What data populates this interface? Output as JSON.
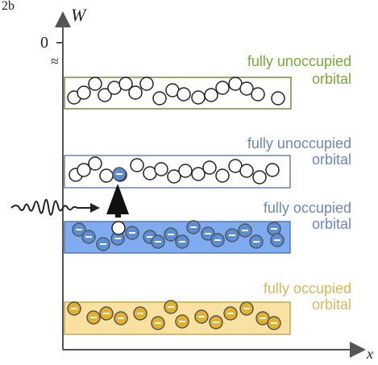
{
  "figure": {
    "panel_label": "2b",
    "y_axis_label": "W",
    "x_axis_label": "x",
    "zero_label": "0",
    "axis_break_symbol": "≈"
  },
  "bands": [
    {
      "id": "top-unoccupied",
      "label_line1": "fully unoccupied",
      "label_line2": "orbital",
      "label_color": "#7aa83a",
      "fill": "#ffffff",
      "stroke": "#6d8f45",
      "occupied": false,
      "electron_count": 12
    },
    {
      "id": "mid-unoccupied",
      "label_line1": "fully unoccupied",
      "label_line2": "orbital",
      "label_color": "#6a88bd",
      "fill": "#ffffff",
      "stroke": "#6d84a6",
      "occupied": false,
      "electron_count": 12,
      "excited_electron": true
    },
    {
      "id": "mid-occupied",
      "label_line1": "fully occupied",
      "label_line2": "orbital",
      "label_color": "#6a88bd",
      "fill": "#7fabf0",
      "stroke": "#5a79b0",
      "occupied": true,
      "electron_count": 12,
      "hole": true
    },
    {
      "id": "bottom-occupied",
      "label_line1": "fully occupied",
      "label_line2": "orbital",
      "label_color": "#d9b85a",
      "fill": "#f8e1a1",
      "stroke": "#c9a74c",
      "occupied": true,
      "electron_count": 12
    }
  ],
  "colors": {
    "axis": "#555555",
    "electron_blue": "#5b8ed8",
    "electron_gold": "#e5b02d",
    "arrow": "#111111",
    "photon_wave": "#222222"
  }
}
